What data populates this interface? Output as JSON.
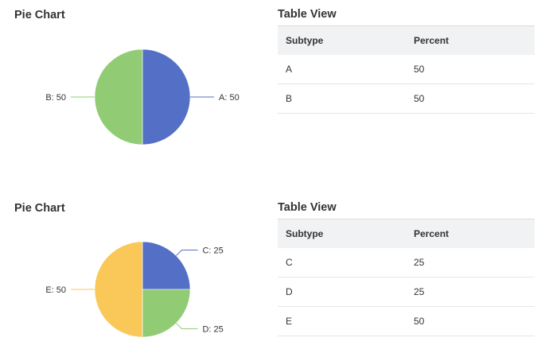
{
  "chart_data": [
    {
      "type": "pie",
      "title": "Pie Chart",
      "slices": [
        {
          "label": "A",
          "value": 50,
          "color": "#5470c6"
        },
        {
          "label": "B",
          "value": 50,
          "color": "#91cc75"
        }
      ]
    },
    {
      "type": "pie",
      "title": "Pie Chart",
      "slices": [
        {
          "label": "C",
          "value": 25,
          "color": "#5470c6"
        },
        {
          "label": "D",
          "value": 25,
          "color": "#91cc75"
        },
        {
          "label": "E",
          "value": 50,
          "color": "#fac858"
        }
      ]
    }
  ],
  "tables": [
    {
      "title": "Table View",
      "headers": [
        "Subtype",
        "Percent"
      ],
      "rows": [
        [
          "A",
          "50"
        ],
        [
          "B",
          "50"
        ]
      ]
    },
    {
      "title": "Table View",
      "headers": [
        "Subtype",
        "Percent"
      ],
      "rows": [
        [
          "C",
          "25"
        ],
        [
          "D",
          "25"
        ],
        [
          "E",
          "50"
        ]
      ]
    }
  ]
}
